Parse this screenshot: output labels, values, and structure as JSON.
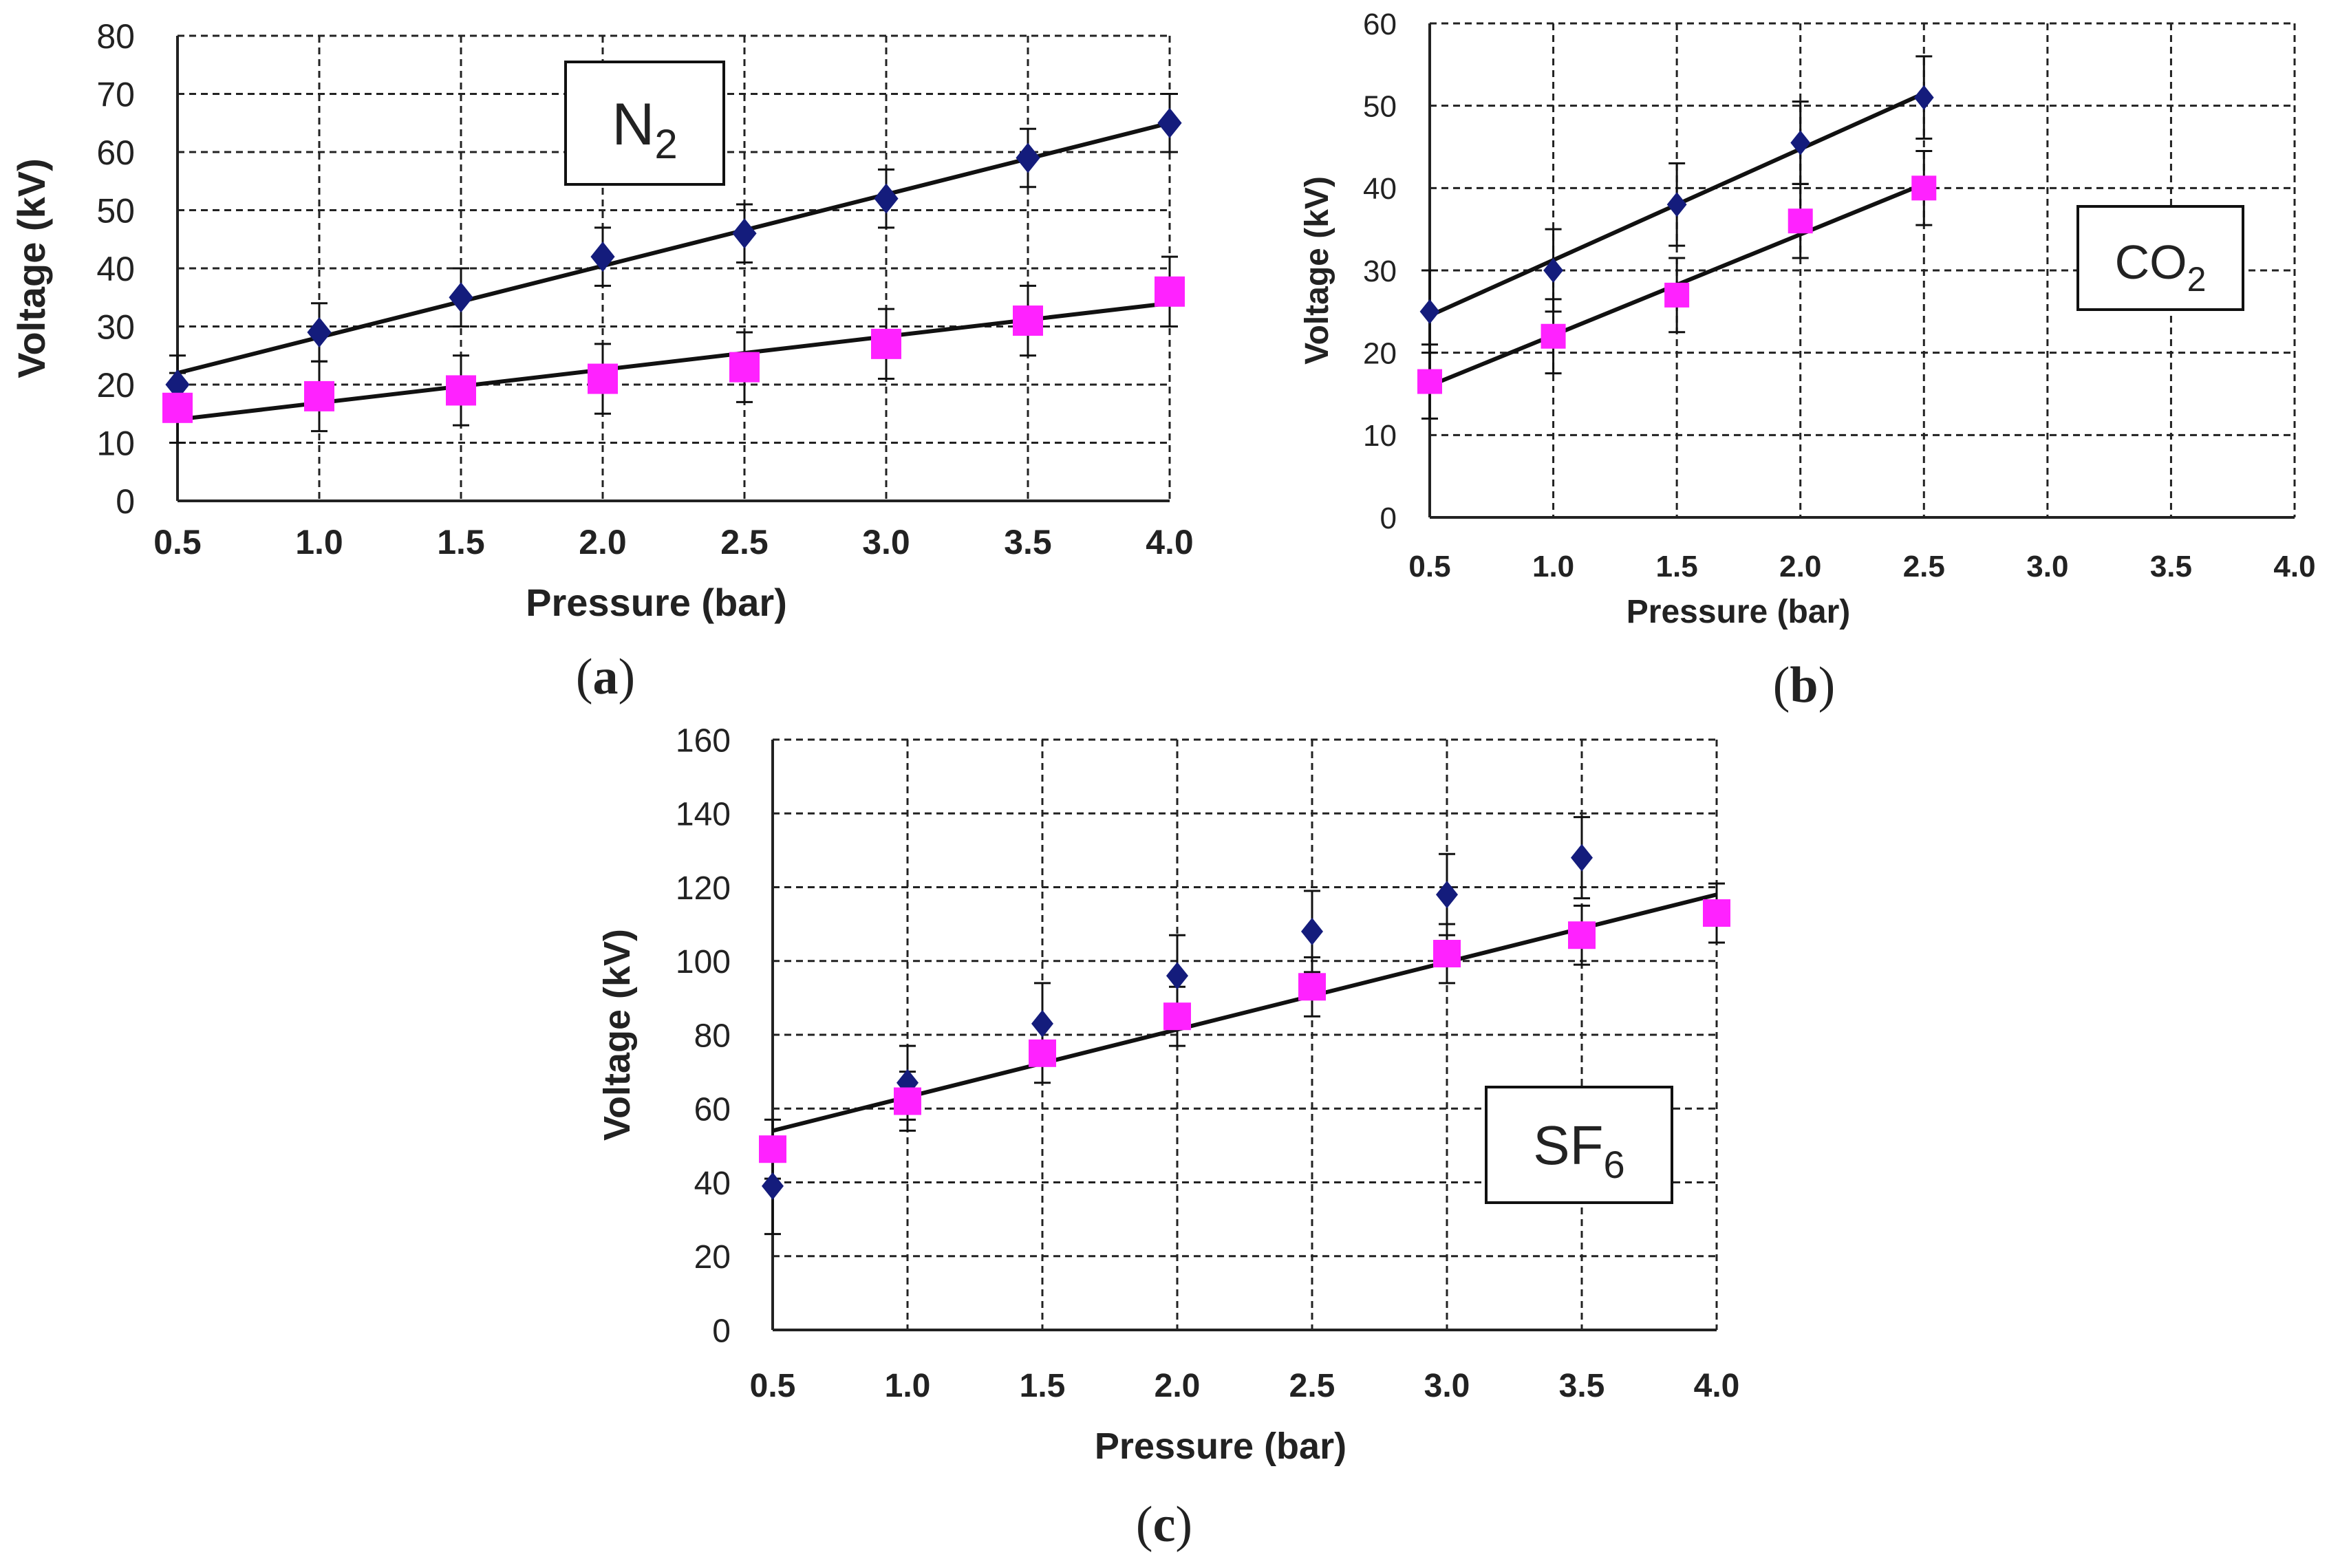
{
  "colors": {
    "series1": "#141c7c",
    "series2": "#ff22ff",
    "fit": "#111111",
    "grid": "#222222",
    "axis": "#222222"
  },
  "chart_data": [
    {
      "id": "a",
      "type": "scatter",
      "panel_label": "a",
      "gas_label": {
        "base": "N",
        "sub": "2"
      },
      "xlabel": "Pressure (bar)",
      "ylabel": "Voltage (kV)",
      "xlim": [
        0.5,
        4.0
      ],
      "ylim": [
        0,
        80
      ],
      "x_ticks": [
        "0.5",
        "1.0",
        "1.5",
        "2.0",
        "2.5",
        "3.0",
        "3.5",
        "4.0"
      ],
      "y_ticks": [
        "0",
        "10",
        "20",
        "30",
        "40",
        "50",
        "60",
        "70",
        "80"
      ],
      "grid": true,
      "series": [
        {
          "name": "series-diamond",
          "marker": "diamond",
          "x": [
            0.5,
            1.0,
            1.5,
            2.0,
            2.5,
            3.0,
            3.5,
            4.0
          ],
          "y": [
            20,
            29,
            35,
            42,
            46,
            52,
            59,
            65
          ],
          "err": [
            5,
            5,
            5,
            5,
            5,
            5,
            5,
            5
          ],
          "fit": {
            "x0": 0.5,
            "y0": 22,
            "x1": 4.0,
            "y1": 65
          }
        },
        {
          "name": "series-square",
          "marker": "square",
          "x": [
            0.5,
            1.0,
            1.5,
            2.0,
            2.5,
            3.0,
            3.5,
            4.0
          ],
          "y": [
            16,
            18,
            19,
            21,
            23,
            27,
            31,
            36
          ],
          "err": [
            6,
            6,
            6,
            6,
            6,
            6,
            6,
            6
          ],
          "fit": {
            "x0": 0.5,
            "y0": 14,
            "x1": 4.0,
            "y1": 34
          }
        }
      ]
    },
    {
      "id": "b",
      "type": "scatter",
      "panel_label": "b",
      "gas_label": {
        "base": "CO",
        "sub": "2"
      },
      "xlabel": "Pressure (bar)",
      "ylabel": "Voltage (kV)",
      "xlim": [
        0.5,
        4.0
      ],
      "ylim": [
        0,
        60
      ],
      "x_ticks": [
        "0.5",
        "1.0",
        "1.5",
        "2.0",
        "2.5",
        "3.0",
        "3.5",
        "4.0"
      ],
      "y_ticks": [
        "0",
        "10",
        "20",
        "30",
        "40",
        "50",
        "60"
      ],
      "grid": true,
      "series": [
        {
          "name": "series-diamond",
          "marker": "diamond",
          "x": [
            0.5,
            1.0,
            1.5,
            2.0,
            2.5
          ],
          "y": [
            25,
            30,
            38,
            45.5,
            51
          ],
          "err": [
            5,
            5,
            5,
            5,
            5
          ],
          "fit": {
            "x0": 0.5,
            "y0": 24.5,
            "x1": 2.5,
            "y1": 51.5
          }
        },
        {
          "name": "series-square",
          "marker": "square",
          "x": [
            0.5,
            1.0,
            1.5,
            2.0,
            2.5
          ],
          "y": [
            16.5,
            22,
            27,
            36,
            40
          ],
          "err": [
            4.5,
            4.5,
            4.5,
            4.5,
            4.5
          ],
          "fit": {
            "x0": 0.5,
            "y0": 16,
            "x1": 2.5,
            "y1": 40.5
          }
        }
      ]
    },
    {
      "id": "c",
      "type": "scatter",
      "panel_label": "c",
      "gas_label": {
        "base": "SF",
        "sub": "6"
      },
      "xlabel": "Pressure (bar)",
      "ylabel": "Voltage (kV)",
      "xlim": [
        0.5,
        4.0
      ],
      "ylim": [
        0,
        160
      ],
      "x_ticks": [
        "0.5",
        "1.0",
        "1.5",
        "2.0",
        "2.5",
        "3.0",
        "3.5",
        "4.0"
      ],
      "y_ticks": [
        "0",
        "20",
        "40",
        "60",
        "80",
        "100",
        "120",
        "140",
        "160"
      ],
      "grid": true,
      "series": [
        {
          "name": "series-diamond",
          "marker": "diamond",
          "x": [
            0.5,
            1.0,
            1.5,
            2.0,
            2.5,
            3.0,
            3.5
          ],
          "y": [
            39,
            67,
            83,
            96,
            108,
            118,
            128
          ],
          "err": [
            13,
            10,
            11,
            11,
            11,
            11,
            11
          ]
        },
        {
          "name": "series-square",
          "marker": "square",
          "x": [
            0.5,
            1.0,
            1.5,
            2.0,
            2.5,
            3.0,
            3.5,
            4.0
          ],
          "y": [
            49,
            62,
            75,
            85,
            93,
            102,
            107,
            113
          ],
          "err": [
            8,
            8,
            8,
            8,
            8,
            8,
            8,
            8
          ],
          "fit": {
            "x0": 0.5,
            "y0": 54,
            "x1": 4.0,
            "y1": 118
          }
        }
      ]
    }
  ]
}
